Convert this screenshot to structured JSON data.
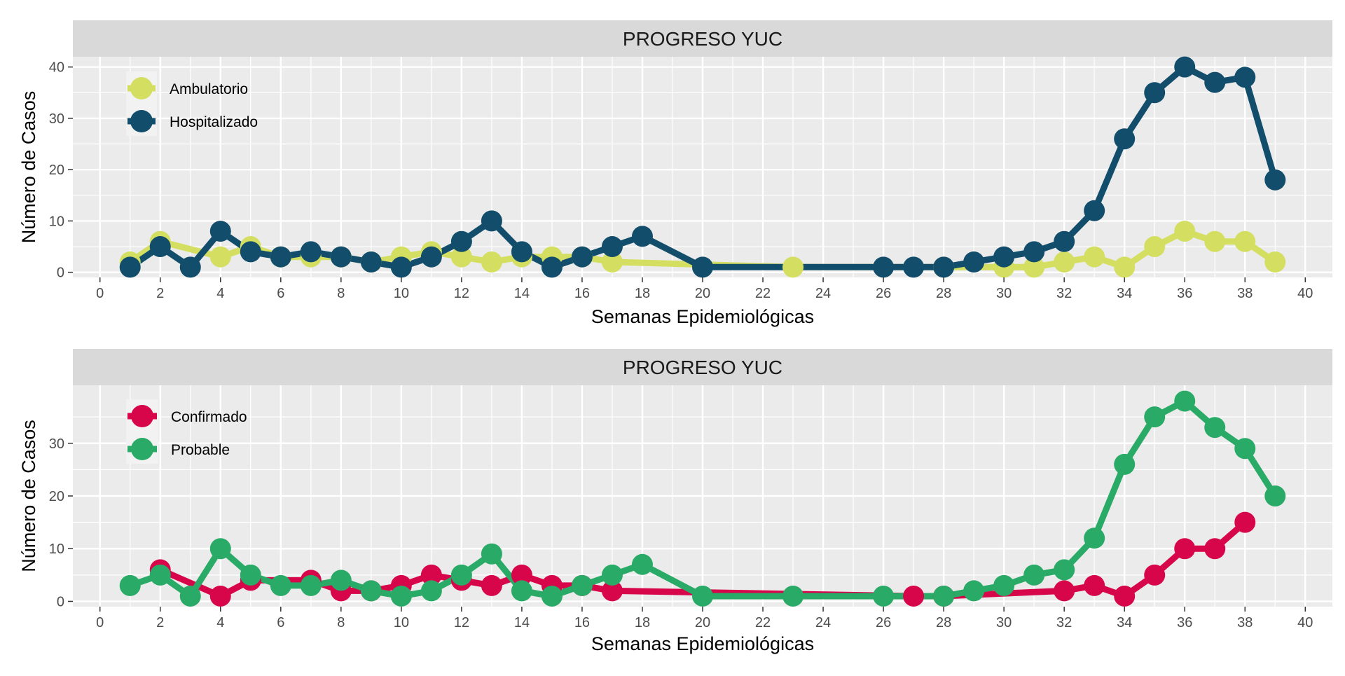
{
  "chart_data": [
    {
      "type": "line",
      "title": "PROGRESO YUC",
      "xlabel": "Semanas Epidemiológicas",
      "ylabel": "Número de Casos",
      "xlim": [
        -0.9,
        40.9
      ],
      "ylim": [
        -1,
        42
      ],
      "x_ticks": [
        0,
        2,
        4,
        6,
        8,
        10,
        12,
        14,
        16,
        18,
        20,
        22,
        24,
        26,
        28,
        30,
        32,
        34,
        36,
        38,
        40
      ],
      "y_ticks": [
        0,
        10,
        20,
        30,
        40
      ],
      "grid": true,
      "legend_position": "top-left",
      "series": [
        {
          "name": "Ambulatorio",
          "color": "#d4df61",
          "points": [
            [
              1,
              2
            ],
            [
              2,
              6
            ],
            [
              4,
              3
            ],
            [
              5,
              5
            ],
            [
              6,
              3
            ],
            [
              7,
              3
            ],
            [
              8,
              3
            ],
            [
              9,
              2
            ],
            [
              10,
              3
            ],
            [
              11,
              4
            ],
            [
              12,
              3
            ],
            [
              13,
              2
            ],
            [
              14,
              3
            ],
            [
              15,
              3
            ],
            [
              16,
              3
            ],
            [
              17,
              2
            ],
            [
              23,
              1
            ],
            [
              28,
              1
            ],
            [
              30,
              1
            ],
            [
              31,
              1
            ],
            [
              32,
              2
            ],
            [
              33,
              3
            ],
            [
              34,
              1
            ],
            [
              35,
              5
            ],
            [
              36,
              8
            ],
            [
              37,
              6
            ],
            [
              38,
              6
            ],
            [
              39,
              2
            ]
          ]
        },
        {
          "name": "Hospitalizado",
          "color": "#124e6b",
          "points": [
            [
              1,
              1
            ],
            [
              2,
              5
            ],
            [
              3,
              1
            ],
            [
              4,
              8
            ],
            [
              5,
              4
            ],
            [
              6,
              3
            ],
            [
              7,
              4
            ],
            [
              8,
              3
            ],
            [
              9,
              2
            ],
            [
              10,
              1
            ],
            [
              11,
              3
            ],
            [
              12,
              6
            ],
            [
              13,
              10
            ],
            [
              14,
              4
            ],
            [
              15,
              1
            ],
            [
              16,
              3
            ],
            [
              17,
              5
            ],
            [
              18,
              7
            ],
            [
              20,
              1
            ],
            [
              26,
              1
            ],
            [
              27,
              1
            ],
            [
              28,
              1
            ],
            [
              29,
              2
            ],
            [
              30,
              3
            ],
            [
              31,
              4
            ],
            [
              32,
              6
            ],
            [
              33,
              12
            ],
            [
              34,
              26
            ],
            [
              35,
              35
            ],
            [
              36,
              40
            ],
            [
              37,
              37
            ],
            [
              38,
              38
            ],
            [
              39,
              18
            ]
          ]
        }
      ]
    },
    {
      "type": "line",
      "title": "PROGRESO YUC",
      "xlabel": "Semanas Epidemiológicas",
      "ylabel": "Número de Casos",
      "xlim": [
        -0.9,
        40.9
      ],
      "ylim": [
        -1,
        41
      ],
      "x_ticks": [
        0,
        2,
        4,
        6,
        8,
        10,
        12,
        14,
        16,
        18,
        20,
        22,
        24,
        26,
        28,
        30,
        32,
        34,
        36,
        38,
        40
      ],
      "y_ticks": [
        0,
        10,
        20,
        30
      ],
      "grid": true,
      "legend_position": "top-left",
      "series": [
        {
          "name": "Confirmado",
          "color": "#d7064b",
          "points": [
            [
              2,
              6
            ],
            [
              4,
              1
            ],
            [
              5,
              4
            ],
            [
              7,
              4
            ],
            [
              8,
              2
            ],
            [
              9,
              2
            ],
            [
              10,
              3
            ],
            [
              11,
              5
            ],
            [
              12,
              4
            ],
            [
              13,
              3
            ],
            [
              14,
              5
            ],
            [
              15,
              3
            ],
            [
              16,
              3
            ],
            [
              17,
              2
            ],
            [
              27,
              1
            ],
            [
              28,
              1
            ],
            [
              32,
              2
            ],
            [
              33,
              3
            ],
            [
              34,
              1
            ],
            [
              35,
              5
            ],
            [
              36,
              10
            ],
            [
              37,
              10
            ],
            [
              38,
              15
            ]
          ]
        },
        {
          "name": "Probable",
          "color": "#2aaa67",
          "points": [
            [
              1,
              3
            ],
            [
              2,
              5
            ],
            [
              3,
              1
            ],
            [
              4,
              10
            ],
            [
              5,
              5
            ],
            [
              6,
              3
            ],
            [
              7,
              3
            ],
            [
              8,
              4
            ],
            [
              9,
              2
            ],
            [
              10,
              1
            ],
            [
              11,
              2
            ],
            [
              12,
              5
            ],
            [
              13,
              9
            ],
            [
              14,
              2
            ],
            [
              15,
              1
            ],
            [
              16,
              3
            ],
            [
              17,
              5
            ],
            [
              18,
              7
            ],
            [
              20,
              1
            ],
            [
              23,
              1
            ],
            [
              26,
              1
            ],
            [
              28,
              1
            ],
            [
              29,
              2
            ],
            [
              30,
              3
            ],
            [
              31,
              5
            ],
            [
              32,
              6
            ],
            [
              33,
              12
            ],
            [
              34,
              26
            ],
            [
              35,
              35
            ],
            [
              36,
              38
            ],
            [
              37,
              33
            ],
            [
              38,
              29
            ],
            [
              39,
              20
            ]
          ]
        }
      ]
    }
  ]
}
